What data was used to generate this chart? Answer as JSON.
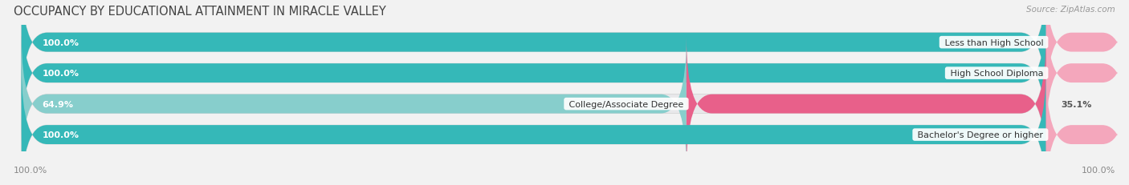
{
  "title": "OCCUPANCY BY EDUCATIONAL ATTAINMENT IN MIRACLE VALLEY",
  "source": "Source: ZipAtlas.com",
  "categories": [
    "Less than High School",
    "High School Diploma",
    "College/Associate Degree",
    "Bachelor's Degree or higher"
  ],
  "owner_values": [
    100.0,
    100.0,
    64.9,
    100.0
  ],
  "renter_values": [
    0.0,
    0.0,
    35.1,
    0.0
  ],
  "renter_visual": [
    8.0,
    8.0,
    35.1,
    8.0
  ],
  "owner_color": "#35b8b8",
  "owner_color_light": "#87cecc",
  "renter_color_strong": "#e8608a",
  "renter_color_light": "#f4a7bc",
  "bar_bg_color": "#e8e8ea",
  "bg_color": "#f2f2f2",
  "title_fontsize": 10.5,
  "source_fontsize": 7.5,
  "label_fontsize": 8.0,
  "tick_fontsize": 8.0
}
